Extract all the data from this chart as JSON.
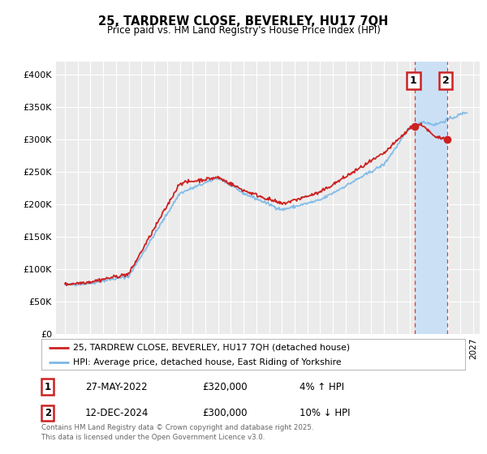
{
  "title": "25, TARDREW CLOSE, BEVERLEY, HU17 7QH",
  "subtitle": "Price paid vs. HM Land Registry's House Price Index (HPI)",
  "ylim": [
    0,
    420000
  ],
  "yticks": [
    0,
    50000,
    100000,
    150000,
    200000,
    250000,
    300000,
    350000,
    400000
  ],
  "ytick_labels": [
    "£0",
    "£50K",
    "£100K",
    "£150K",
    "£200K",
    "£250K",
    "£300K",
    "£350K",
    "£400K"
  ],
  "x_start_year": 1995,
  "x_end_year": 2027,
  "hpi_color": "#7ab8e8",
  "price_color": "#cc2222",
  "sale1_date": 2022.41,
  "sale1_price": 320000,
  "sale2_date": 2024.95,
  "sale2_price": 300000,
  "legend_line1": "25, TARDREW CLOSE, BEVERLEY, HU17 7QH (detached house)",
  "legend_line2": "HPI: Average price, detached house, East Riding of Yorkshire",
  "annotation1_date": "27-MAY-2022",
  "annotation1_price": "£320,000",
  "annotation1_hpi": "4% ↑ HPI",
  "annotation2_date": "12-DEC-2024",
  "annotation2_price": "£300,000",
  "annotation2_hpi": "10% ↓ HPI",
  "footer": "Contains HM Land Registry data © Crown copyright and database right 2025.\nThis data is licensed under the Open Government Licence v3.0.",
  "bg_color": "#ffffff",
  "plot_bg_color": "#ebebeb",
  "grid_color": "#ffffff",
  "shade_color": "#cce0f5"
}
